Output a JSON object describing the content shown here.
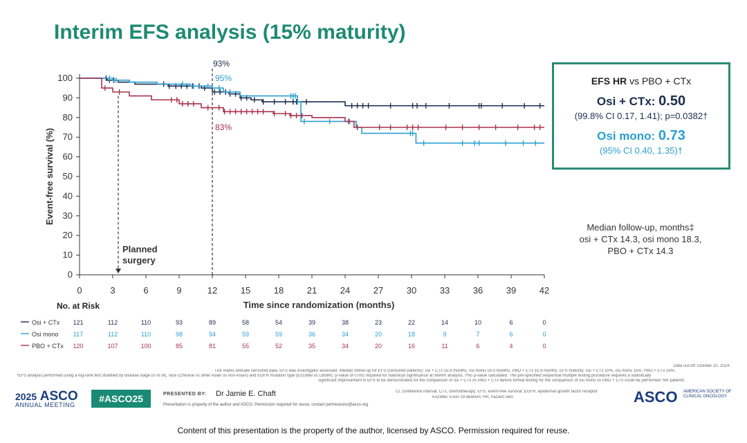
{
  "slide": {
    "title": "Interim EFS analysis (15% maturity)"
  },
  "chart_data": {
    "type": "line",
    "step": true,
    "xlabel": "Time since randomization (months)",
    "ylabel": "Event-free survival (%)",
    "xlim": [
      0,
      42
    ],
    "ylim": [
      0,
      100
    ],
    "xticks": [
      0,
      3,
      6,
      9,
      12,
      15,
      18,
      21,
      24,
      27,
      30,
      33,
      36,
      39,
      42
    ],
    "yticks": [
      0,
      10,
      20,
      30,
      40,
      50,
      60,
      70,
      80,
      90,
      100
    ],
    "annotations": {
      "m12_osi_ctx": "93%",
      "m12_osi_mono": "95%",
      "m12_pbo_ctx": "83%",
      "planned_surgery": [
        "Planned",
        "surgery"
      ]
    },
    "planned_surgery_month": 3.5,
    "landmark_month": 12,
    "series": [
      {
        "name": "Osi + CTx",
        "color": "#1a2d4e",
        "x": [
          0,
          2.5,
          3.5,
          5,
          8,
          11,
          12,
          13.5,
          14.5,
          15.5,
          16.5,
          18.5,
          24,
          42
        ],
        "y": [
          100,
          99,
          98,
          97,
          96,
          95,
          93,
          92,
          90,
          89,
          88,
          88,
          86,
          86
        ],
        "censor_x": [
          2.4,
          2.7,
          3.1,
          7.6,
          8.1,
          8.7,
          9.2,
          9.7,
          10.2,
          10.8,
          11.3,
          12.2,
          12.7,
          13.2,
          13.6,
          14.1,
          14.6,
          15.1,
          15.8,
          16.6,
          17.6,
          18.6,
          19.3,
          19.6,
          20.5,
          24.6,
          25.1,
          25.6,
          26.1,
          28.1,
          30.1,
          30.5,
          31.3,
          33.4,
          36.1,
          36.3,
          38.2,
          40.2,
          41.6
        ]
      },
      {
        "name": "Osi mono",
        "color": "#2a9fd0",
        "x": [
          0,
          3,
          4.5,
          7,
          10,
          12,
          13,
          14.5,
          19,
          19.7,
          20,
          24,
          25,
          25.5,
          29.8,
          30.4,
          42
        ],
        "y": [
          100,
          99,
          98,
          97,
          96,
          95,
          93,
          91,
          91,
          88,
          78,
          78,
          75,
          72,
          72,
          67,
          67
        ],
        "censor_x": [
          2.7,
          3.3,
          9.3,
          10.3,
          11.6,
          12.6,
          13.6,
          19.1,
          19.3,
          19.5,
          19.7,
          20.3,
          22.6,
          24.4,
          25.1,
          29.9,
          30.1,
          31.1,
          34.6,
          35.7,
          36.1,
          38.5,
          40.1,
          41.2
        ]
      },
      {
        "name": "PBO + CTx",
        "color": "#a8324c",
        "x": [
          0,
          2,
          3,
          4.5,
          6.5,
          9,
          11,
          13,
          16,
          17.5,
          19,
          21,
          24,
          24.8,
          42
        ],
        "y": [
          100,
          95,
          93,
          91,
          89,
          87,
          85,
          83,
          83,
          82,
          81,
          80,
          78,
          75,
          75
        ],
        "censor_x": [
          2.3,
          3.6,
          8.3,
          8.8,
          9.3,
          9.8,
          10.3,
          11.6,
          12.6,
          13.1,
          13.6,
          14.1,
          14.6,
          15.1,
          15.6,
          16.1,
          16.6,
          17.6,
          18.6,
          19.1,
          19.6,
          20.1,
          24.3,
          25.1,
          27.1,
          28.1,
          29.6,
          30.1,
          30.6,
          33.1,
          34.6,
          36.1,
          37.6,
          39.6,
          41.1,
          41.6
        ]
      }
    ],
    "at_risk": {
      "title": "No. at Risk",
      "rows": [
        {
          "label": "Osi + CTx",
          "color": "#1a2d4e",
          "values": [
            "121",
            "112",
            "110",
            "93",
            "89",
            "58",
            "54",
            "39",
            "38",
            "23",
            "22",
            "14",
            "10",
            "6",
            "0"
          ]
        },
        {
          "label": "Osi mono",
          "color": "#2a9fd0",
          "values": [
            "117",
            "112",
            "110",
            "98",
            "94",
            "59",
            "59",
            "36",
            "34",
            "20",
            "18",
            "9",
            "7",
            "6",
            "0"
          ]
        },
        {
          "label": "PBO + CTx",
          "color": "#a8324c",
          "values": [
            "120",
            "107",
            "100",
            "85",
            "81",
            "55",
            "52",
            "35",
            "34",
            "20",
            "16",
            "11",
            "6",
            "4",
            "0"
          ]
        }
      ]
    }
  },
  "hr_box": {
    "header_bold": "EFS HR",
    "header_rest": " vs PBO + CTx",
    "osi_ctx_label": "Osi + CTx: ",
    "osi_ctx_value": "0.50",
    "osi_ctx_ci": "(99.8% CI 0.17, 1.41); p=0.0382†",
    "osi_mono_label": "Osi mono: ",
    "osi_mono_value": "0.73",
    "osi_mono_ci": "(95% CI 0.40, 1.35)†"
  },
  "followup": {
    "line1": "Median follow-up, months‡",
    "line2": "osi + CTx 14.3, osi mono 18.3,",
    "line3": "PBO + CTx 14.3"
  },
  "footnotes": {
    "cutoff": "Data cut-off: October 10, 2024.",
    "tick_marks": "Tick marks indicate censored data. EFS was investigator assessed. Median follow-up for EFS (censored patients): osi + CTx 15.9 months, osi mono 18.3 months, PBO + CTx 15.9 months. EFS maturity: osi + CTx 10%, osi mono 15%, PBO + CTx 18%.",
    "analysis": "*EFS analysis performed using a log-rank test stratified by disease stage (II vs III), race (Chinese vs other Asian vs non-Asian) and EGFR mutation type (Ex19del vs L858R). p-value of 0.002 required for statistical significance at interim analysis. †No p-value calculated. The pre-specified sequential multiple testing procedure required a statistically",
    "significance": "significant improvement in EFS to be demonstrated for the comparison of osi + CTx vs PBO + CTx before formal testing for the comparison of osi mono vs PBO + CTx could be performed. NR patients",
    "abbrev1": "CI, confidence interval; CTx, chemotherapy; EFS, event-free survival; EGFR, epidermal growth factor receptor",
    "abbrev2": "Ex19del, Exon 19 deletion; HR, hazard ratio"
  },
  "footer": {
    "meeting_year": "2025",
    "meeting_org": "ASCO",
    "meeting_sub": "ANNUAL MEETING",
    "hashtag": "#ASCO25",
    "presented_by_label": "PRESENTED BY:",
    "presenter": "Dr Jamie E. Chaft",
    "presenter_note": "Presentation is property of the author and ASCO. Permission required for reuse; contact permissions@asco.org",
    "asco_logo": "ASCO",
    "asco_logo_sub": "AMERICAN SOCIETY OF CLINICAL ONCOLOGY",
    "banner": "Content of this presentation is the property of the author, licensed by ASCO. Permission required for reuse."
  }
}
